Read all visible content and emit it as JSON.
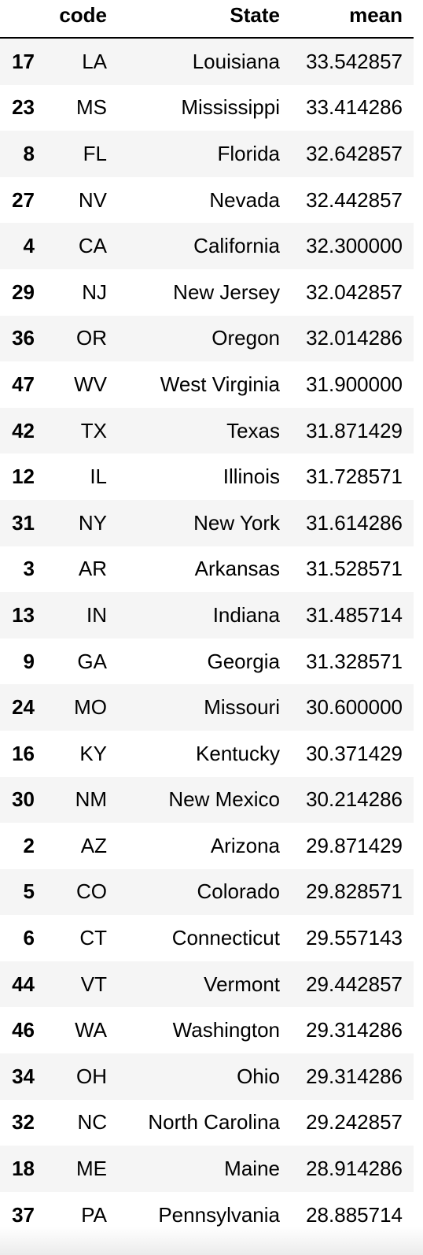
{
  "table": {
    "columns": {
      "index": "",
      "code": "code",
      "state": "State",
      "mean": "mean"
    },
    "rows": [
      {
        "index": "17",
        "code": "LA",
        "state": "Louisiana",
        "mean": "33.542857"
      },
      {
        "index": "23",
        "code": "MS",
        "state": "Mississippi",
        "mean": "33.414286"
      },
      {
        "index": "8",
        "code": "FL",
        "state": "Florida",
        "mean": "32.642857"
      },
      {
        "index": "27",
        "code": "NV",
        "state": "Nevada",
        "mean": "32.442857"
      },
      {
        "index": "4",
        "code": "CA",
        "state": "California",
        "mean": "32.300000"
      },
      {
        "index": "29",
        "code": "NJ",
        "state": "New Jersey",
        "mean": "32.042857"
      },
      {
        "index": "36",
        "code": "OR",
        "state": "Oregon",
        "mean": "32.014286"
      },
      {
        "index": "47",
        "code": "WV",
        "state": "West Virginia",
        "mean": "31.900000"
      },
      {
        "index": "42",
        "code": "TX",
        "state": "Texas",
        "mean": "31.871429"
      },
      {
        "index": "12",
        "code": "IL",
        "state": "Illinois",
        "mean": "31.728571"
      },
      {
        "index": "31",
        "code": "NY",
        "state": "New York",
        "mean": "31.614286"
      },
      {
        "index": "3",
        "code": "AR",
        "state": "Arkansas",
        "mean": "31.528571"
      },
      {
        "index": "13",
        "code": "IN",
        "state": "Indiana",
        "mean": "31.485714"
      },
      {
        "index": "9",
        "code": "GA",
        "state": "Georgia",
        "mean": "31.328571"
      },
      {
        "index": "24",
        "code": "MO",
        "state": "Missouri",
        "mean": "30.600000"
      },
      {
        "index": "16",
        "code": "KY",
        "state": "Kentucky",
        "mean": "30.371429"
      },
      {
        "index": "30",
        "code": "NM",
        "state": "New Mexico",
        "mean": "30.214286"
      },
      {
        "index": "2",
        "code": "AZ",
        "state": "Arizona",
        "mean": "29.871429"
      },
      {
        "index": "5",
        "code": "CO",
        "state": "Colorado",
        "mean": "29.828571"
      },
      {
        "index": "6",
        "code": "CT",
        "state": "Connecticut",
        "mean": "29.557143"
      },
      {
        "index": "44",
        "code": "VT",
        "state": "Vermont",
        "mean": "29.442857"
      },
      {
        "index": "46",
        "code": "WA",
        "state": "Washington",
        "mean": "29.314286"
      },
      {
        "index": "34",
        "code": "OH",
        "state": "Ohio",
        "mean": "29.314286"
      },
      {
        "index": "32",
        "code": "NC",
        "state": "North Carolina",
        "mean": "29.242857"
      },
      {
        "index": "18",
        "code": "ME",
        "state": "Maine",
        "mean": "28.914286"
      },
      {
        "index": "37",
        "code": "PA",
        "state": "Pennsylvania",
        "mean": "28.885714"
      }
    ]
  }
}
